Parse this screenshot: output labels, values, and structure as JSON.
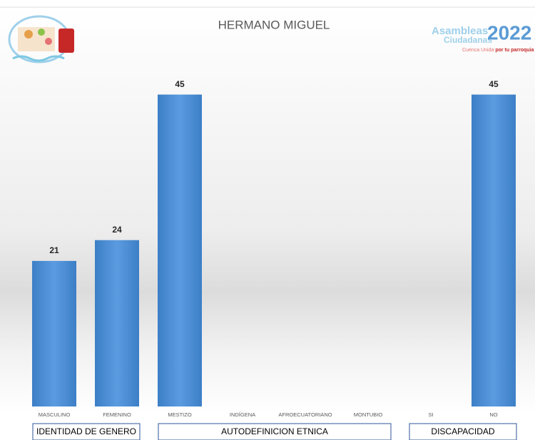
{
  "chart_data": {
    "type": "bar",
    "title": "HERMANO MIGUEL",
    "categories": [
      "MASCULINO",
      "FEMENINO",
      "MESTIZO",
      "INDÍGENA",
      "AFROECUATORIANO",
      "MONTUBIO",
      "SI",
      "NO"
    ],
    "values": [
      21,
      24,
      45,
      null,
      null,
      null,
      null,
      45
    ],
    "color": "#4a8fd4",
    "ylim": [
      0,
      50
    ],
    "groups": [
      {
        "label": "IDENTIDAD DE GENERO",
        "from": 0,
        "to": 1
      },
      {
        "label": "AUTODEFINICION ETNICA",
        "from": 2,
        "to": 5
      },
      {
        "label": "DISCAPACIDAD",
        "from": 6,
        "to": 7
      }
    ],
    "logo": {
      "line1": "Asambleas",
      "line2": "Ciudadanas",
      "year": "2022",
      "tagline": "Cuenca Unida",
      "tagline_bold": "por tu parroquia"
    }
  }
}
